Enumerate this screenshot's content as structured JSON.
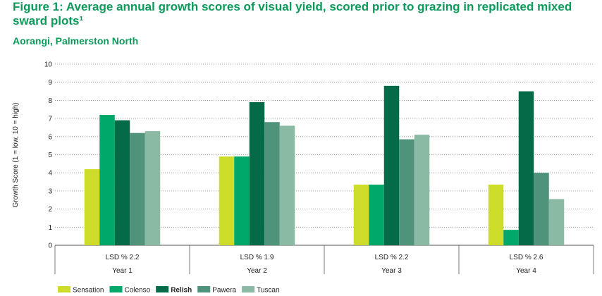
{
  "title": "Figure 1: Average annual growth scores of visual yield, scored prior to grazing in replicated mixed sward plots¹",
  "subtitle": "Aorangi, Palmerston North",
  "colors": {
    "Sensation": "#cddc29",
    "Colenso": "#00a869",
    "Relish": "#056a47",
    "Pawera": "#4e937a",
    "Tuscan": "#8ab9a4",
    "title": "#0b9a5a"
  },
  "chart_data": {
    "type": "bar",
    "title": "Figure 1: Average annual growth scores of visual yield, scored prior to grazing in replicated mixed sward plots¹",
    "subtitle": "Aorangi, Palmerston North",
    "xlabel": "",
    "ylabel": "Growth Score (1 = low, 10 = high)",
    "ylim": [
      0,
      10
    ],
    "yticks": [
      "0",
      "1",
      "2",
      "3",
      "4",
      "5",
      "6",
      "7",
      "8",
      "9",
      "10"
    ],
    "grid": "horizontal dotted",
    "legend_position": "bottom",
    "categories": [
      "Year 1",
      "Year 2",
      "Year 3",
      "Year 4"
    ],
    "lsd_labels": [
      "LSD % 2.2",
      "LSD % 1.9",
      "LSD % 2.2",
      "LSD % 2.6"
    ],
    "series": [
      {
        "name": "Sensation",
        "values": [
          4.2,
          4.9,
          3.35,
          3.35
        ]
      },
      {
        "name": "Colenso",
        "values": [
          7.2,
          4.9,
          3.35,
          0.85
        ]
      },
      {
        "name": "Relish",
        "values": [
          6.9,
          7.9,
          8.8,
          8.5
        ]
      },
      {
        "name": "Pawera",
        "values": [
          6.2,
          6.8,
          5.85,
          4.0
        ]
      },
      {
        "name": "Tuscan",
        "values": [
          6.3,
          6.6,
          6.1,
          2.55
        ]
      }
    ],
    "legend_bold": [
      "Relish"
    ]
  }
}
